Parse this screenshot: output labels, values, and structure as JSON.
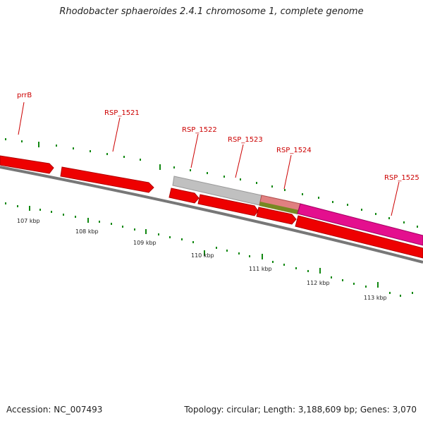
{
  "title": "Rhodobacter sphaeroides 2.4.1 chromosome 1, complete genome",
  "accession": "Accession: NC_007493",
  "summary": "Topology: circular; Length: 3,188,609 bp; Genes: 3,070",
  "colors": {
    "label": "#cc0000",
    "tick": "#118811",
    "backbone": "#777777",
    "gene_red": "#ee0000",
    "gene_grey": "#c0c0c0",
    "gene_pink": "#e40f8e",
    "gene_olive": "#778822",
    "gene_salmon": "#e08080"
  },
  "genes": [
    {
      "name": "prrB",
      "labeled": true
    },
    {
      "name": "RSP_1521",
      "labeled": true
    },
    {
      "name": "RSP_1522",
      "labeled": true
    },
    {
      "name": "RSP_1523",
      "labeled": true
    },
    {
      "name": "RSP_1524",
      "labeled": true
    },
    {
      "name": "RSP_1525",
      "labeled": true
    }
  ],
  "scale_labels": [
    "107 kbp",
    "108 kbp",
    "109 kbp",
    "110 kbp",
    "111 kbp",
    "112 kbp",
    "113 kbp"
  ]
}
